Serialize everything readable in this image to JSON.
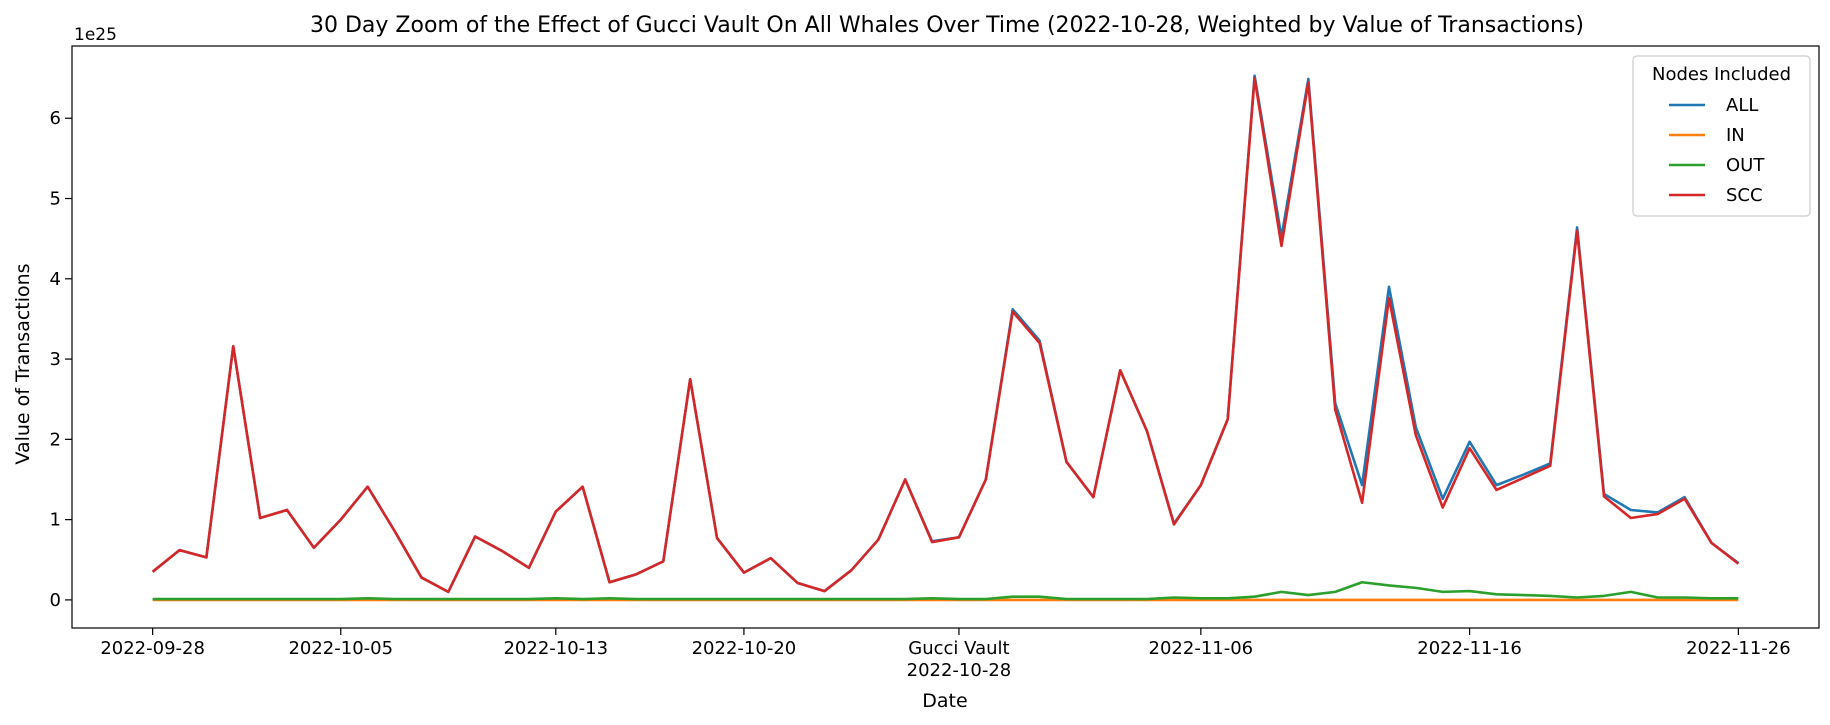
{
  "chart_data": {
    "type": "line",
    "title": "30 Day Zoom of the Effect of Gucci Vault On All Whales Over Time (2022-10-28, Weighted by Value of Transactions)",
    "xlabel": "Date",
    "ylabel": "Value of Transactions",
    "y_offset_label": "1e25",
    "ylim": [
      -0.35,
      6.9
    ],
    "yticks": [
      0,
      1,
      2,
      3,
      4,
      5,
      6
    ],
    "x_start_date": "2022-09-28",
    "xticks": [
      {
        "day": 0,
        "label": "2022-09-28"
      },
      {
        "day": 7,
        "label": "2022-10-05"
      },
      {
        "day": 15,
        "label": "2022-10-13"
      },
      {
        "day": 22,
        "label": "2022-10-20"
      },
      {
        "day": 30,
        "label": "Gucci Vault"
      },
      {
        "day": 30,
        "label": "2022-10-28"
      },
      {
        "day": 39,
        "label": "2022-11-06"
      },
      {
        "day": 49,
        "label": "2022-11-16"
      },
      {
        "day": 59,
        "label": "2022-11-26"
      }
    ],
    "grid": false,
    "legend": {
      "title": "Nodes Included",
      "placement": "top-right"
    },
    "x_days": [
      0,
      1,
      2,
      3,
      4,
      5,
      6,
      7,
      8,
      9,
      10,
      11,
      12,
      13,
      14,
      15,
      16,
      17,
      18,
      19,
      20,
      21,
      22,
      23,
      24,
      25,
      26,
      27,
      28,
      29,
      30,
      31,
      32,
      33,
      34,
      35,
      36,
      37,
      38,
      39,
      40,
      41,
      42,
      43,
      44,
      45,
      46,
      47,
      48,
      49,
      50,
      51,
      52,
      53,
      54,
      55,
      56,
      57,
      58,
      59
    ],
    "series": [
      {
        "name": "ALL",
        "color": "#1f77b4",
        "values": [
          0.35,
          0.62,
          0.53,
          3.16,
          1.02,
          1.12,
          0.65,
          1.0,
          1.41,
          0.86,
          0.28,
          0.1,
          0.79,
          0.61,
          0.4,
          1.1,
          1.41,
          0.22,
          0.32,
          0.48,
          2.75,
          0.77,
          0.34,
          0.52,
          0.21,
          0.11,
          0.37,
          0.75,
          1.5,
          0.73,
          0.78,
          1.5,
          3.62,
          3.23,
          1.72,
          1.28,
          2.86,
          2.1,
          0.95,
          1.43,
          2.25,
          6.53,
          4.52,
          6.49,
          2.45,
          1.43,
          3.9,
          2.15,
          1.26,
          1.97,
          1.43,
          1.56,
          1.7,
          4.64,
          1.32,
          1.12,
          1.09,
          1.28,
          0.71,
          0.46
        ]
      },
      {
        "name": "IN",
        "color": "#ff7f0e",
        "values": [
          0.0,
          0.0,
          0.0,
          0.0,
          0.0,
          0.0,
          0.0,
          0.0,
          0.0,
          0.0,
          0.0,
          0.0,
          0.0,
          0.0,
          0.0,
          0.0,
          0.0,
          0.0,
          0.0,
          0.0,
          0.0,
          0.0,
          0.0,
          0.0,
          0.0,
          0.0,
          0.0,
          0.0,
          0.0,
          0.0,
          0.0,
          0.0,
          0.0,
          0.0,
          0.0,
          0.0,
          0.0,
          0.0,
          0.0,
          0.0,
          0.0,
          0.0,
          0.0,
          0.0,
          0.0,
          0.0,
          0.0,
          0.0,
          0.0,
          0.0,
          0.0,
          0.0,
          0.0,
          0.0,
          0.0,
          0.0,
          0.0,
          0.0,
          0.0,
          0.0
        ]
      },
      {
        "name": "OUT",
        "color": "#2ca02c",
        "values": [
          0.01,
          0.01,
          0.01,
          0.01,
          0.01,
          0.01,
          0.01,
          0.01,
          0.02,
          0.01,
          0.01,
          0.01,
          0.01,
          0.01,
          0.01,
          0.02,
          0.01,
          0.02,
          0.01,
          0.01,
          0.01,
          0.01,
          0.01,
          0.01,
          0.01,
          0.01,
          0.01,
          0.01,
          0.01,
          0.02,
          0.01,
          0.01,
          0.04,
          0.04,
          0.01,
          0.01,
          0.01,
          0.01,
          0.03,
          0.02,
          0.02,
          0.04,
          0.1,
          0.06,
          0.1,
          0.22,
          0.18,
          0.15,
          0.1,
          0.11,
          0.07,
          0.06,
          0.05,
          0.03,
          0.05,
          0.1,
          0.03,
          0.03,
          0.02,
          0.02
        ]
      },
      {
        "name": "SCC",
        "color": "#d62728",
        "values": [
          0.35,
          0.62,
          0.53,
          3.16,
          1.02,
          1.12,
          0.65,
          1.0,
          1.41,
          0.86,
          0.28,
          0.1,
          0.79,
          0.61,
          0.4,
          1.1,
          1.41,
          0.22,
          0.32,
          0.48,
          2.75,
          0.77,
          0.34,
          0.52,
          0.21,
          0.11,
          0.37,
          0.75,
          1.5,
          0.72,
          0.78,
          1.5,
          3.59,
          3.2,
          1.72,
          1.28,
          2.86,
          2.1,
          0.94,
          1.43,
          2.25,
          6.5,
          4.41,
          6.45,
          2.37,
          1.21,
          3.76,
          2.05,
          1.15,
          1.89,
          1.37,
          1.52,
          1.67,
          4.6,
          1.29,
          1.02,
          1.07,
          1.26,
          0.71,
          0.45
        ]
      }
    ]
  }
}
